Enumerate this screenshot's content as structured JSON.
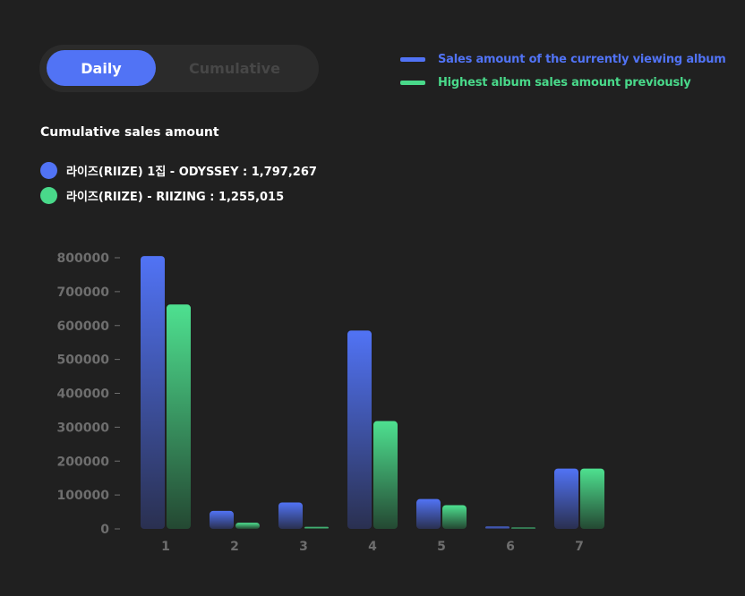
{
  "toggle": {
    "daily_label": "Daily",
    "cumulative_label": "Cumulative",
    "active": "daily"
  },
  "legend": {
    "current_label": "Sales amount of the currently viewing album",
    "previous_label": "Highest album sales amount previously"
  },
  "summary": {
    "title": "Cumulative sales amount",
    "items": [
      {
        "label": "라이즈(RIIZE) 1집 - ODYSSEY : 1,797,267",
        "color": "#5173f5"
      },
      {
        "label": "라이즈(RIIZE) - RIIZING : 1,255,015",
        "color": "#49d98a"
      }
    ]
  },
  "colors": {
    "current": "#5173f5",
    "previous": "#49d98a",
    "background": "#202020",
    "axis_text": "#6e6e6e"
  },
  "chart_data": {
    "type": "bar",
    "categories": [
      "1",
      "2",
      "3",
      "4",
      "5",
      "6",
      "7"
    ],
    "series": [
      {
        "name": "Sales amount of the currently viewing album",
        "values": [
          805000,
          53000,
          78000,
          585000,
          88000,
          7000,
          178000
        ]
      },
      {
        "name": "Highest album sales amount previously",
        "values": [
          662000,
          18000,
          6000,
          318000,
          70000,
          4000,
          178000
        ]
      }
    ],
    "yticks": [
      "0",
      "100000",
      "200000",
      "300000",
      "400000",
      "500000",
      "600000",
      "700000",
      "800000"
    ],
    "ylim": [
      0,
      800000
    ],
    "legend_position": "top-right",
    "grid": false
  }
}
